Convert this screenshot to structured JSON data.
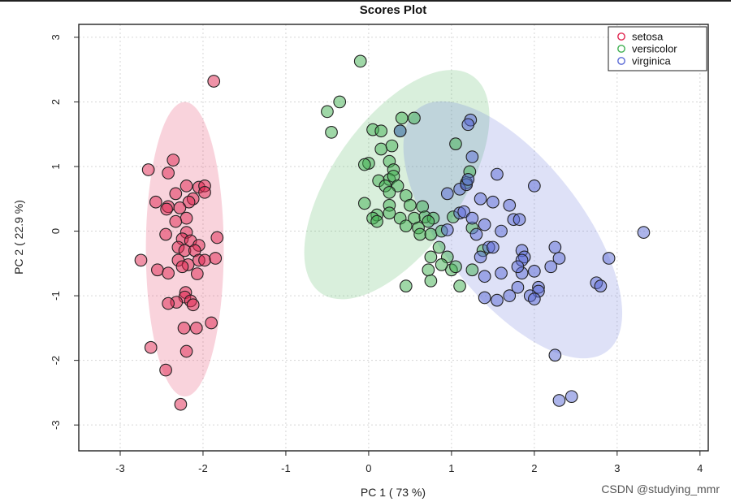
{
  "watermark": "CSDN @studying_mmr",
  "colors": {
    "setosa": "#e0254f",
    "versicolor": "#3fb050",
    "virginica": "#5a6ad6"
  },
  "chart_data": {
    "type": "scatter",
    "title": "Scores Plot",
    "xlabel": "PC 1 ( 73 %)",
    "ylabel": "PC 2 ( 22.9 %)",
    "xlim": [
      -3.5,
      4.1
    ],
    "ylim": [
      -3.4,
      3.2
    ],
    "xticks": [
      "-3",
      "-2",
      "-1",
      "0",
      "1",
      "2",
      "3",
      "4"
    ],
    "yticks": [
      "3",
      "2",
      "1",
      "0",
      "-1",
      "-2",
      "-3"
    ],
    "grid": true,
    "legend_position": "top-right",
    "series": [
      {
        "name": "setosa",
        "ellipse": {
          "cx": -2.22,
          "cy": -0.28,
          "rx": 0.47,
          "ry": 2.28,
          "angle": 0
        },
        "points": [
          [
            -1.87,
            2.32
          ],
          [
            -2.36,
            1.1
          ],
          [
            -2.66,
            0.95
          ],
          [
            -2.42,
            0.9
          ],
          [
            -2.57,
            0.45
          ],
          [
            -2.42,
            0.38
          ],
          [
            -2.33,
            0.58
          ],
          [
            -2.2,
            0.7
          ],
          [
            -2.05,
            0.68
          ],
          [
            -1.98,
            0.7
          ],
          [
            -1.98,
            0.6
          ],
          [
            -2.12,
            0.5
          ],
          [
            -2.17,
            0.45
          ],
          [
            -2.28,
            0.36
          ],
          [
            -2.44,
            0.34
          ],
          [
            -2.2,
            0.2
          ],
          [
            -2.33,
            0.15
          ],
          [
            -2.2,
            -0.02
          ],
          [
            -2.45,
            -0.05
          ],
          [
            -2.25,
            -0.12
          ],
          [
            -2.15,
            -0.15
          ],
          [
            -2.05,
            -0.22
          ],
          [
            -1.83,
            -0.1
          ],
          [
            -2.3,
            -0.25
          ],
          [
            -2.22,
            -0.3
          ],
          [
            -2.1,
            -0.3
          ],
          [
            -2.75,
            -0.45
          ],
          [
            -2.3,
            -0.45
          ],
          [
            -2.18,
            -0.52
          ],
          [
            -2.25,
            -0.55
          ],
          [
            -2.05,
            -0.45
          ],
          [
            -1.98,
            -0.45
          ],
          [
            -1.85,
            -0.42
          ],
          [
            -2.55,
            -0.6
          ],
          [
            -2.42,
            -0.65
          ],
          [
            -2.07,
            -0.66
          ],
          [
            -2.21,
            -0.95
          ],
          [
            -2.22,
            -1.02
          ],
          [
            -2.32,
            -1.1
          ],
          [
            -2.42,
            -1.12
          ],
          [
            -2.15,
            -1.08
          ],
          [
            -2.12,
            -1.14
          ],
          [
            -2.23,
            -1.5
          ],
          [
            -2.08,
            -1.5
          ],
          [
            -1.9,
            -1.42
          ],
          [
            -2.63,
            -1.8
          ],
          [
            -2.2,
            -1.86
          ],
          [
            -2.45,
            -2.15
          ],
          [
            -2.27,
            -2.68
          ]
        ]
      },
      {
        "name": "versicolor",
        "ellipse": {
          "cx": 0.34,
          "cy": 0.72,
          "rx": 0.78,
          "ry": 2.05,
          "angle": 35
        },
        "points": [
          [
            -0.1,
            2.63
          ],
          [
            -0.35,
            2.0
          ],
          [
            -0.5,
            1.85
          ],
          [
            -0.45,
            1.53
          ],
          [
            0.05,
            1.57
          ],
          [
            0.15,
            1.55
          ],
          [
            0.38,
            1.55
          ],
          [
            0.4,
            1.75
          ],
          [
            0.55,
            1.75
          ],
          [
            0.15,
            1.27
          ],
          [
            0.28,
            1.32
          ],
          [
            0.25,
            1.08
          ],
          [
            0.0,
            1.05
          ],
          [
            -0.05,
            1.03
          ],
          [
            0.3,
            0.95
          ],
          [
            0.12,
            0.78
          ],
          [
            0.25,
            0.8
          ],
          [
            0.3,
            0.85
          ],
          [
            0.2,
            0.7
          ],
          [
            0.35,
            0.7
          ],
          [
            0.25,
            0.6
          ],
          [
            0.45,
            0.55
          ],
          [
            1.05,
            1.35
          ],
          [
            1.22,
            0.92
          ],
          [
            1.18,
            0.75
          ],
          [
            -0.05,
            0.43
          ],
          [
            0.25,
            0.4
          ],
          [
            0.5,
            0.4
          ],
          [
            0.65,
            0.38
          ],
          [
            0.1,
            0.25
          ],
          [
            0.25,
            0.28
          ],
          [
            0.05,
            0.2
          ],
          [
            0.1,
            0.15
          ],
          [
            0.38,
            0.2
          ],
          [
            0.55,
            0.2
          ],
          [
            0.68,
            0.22
          ],
          [
            0.78,
            0.2
          ],
          [
            0.72,
            0.15
          ],
          [
            1.02,
            0.22
          ],
          [
            0.45,
            0.08
          ],
          [
            0.6,
            0.05
          ],
          [
            0.62,
            -0.05
          ],
          [
            0.75,
            -0.05
          ],
          [
            0.88,
            0.0
          ],
          [
            1.25,
            0.05
          ],
          [
            0.85,
            -0.25
          ],
          [
            0.75,
            -0.4
          ],
          [
            0.95,
            -0.4
          ],
          [
            1.0,
            -0.6
          ],
          [
            1.05,
            -0.55
          ],
          [
            0.88,
            -0.52
          ],
          [
            0.72,
            -0.6
          ],
          [
            0.45,
            -0.85
          ],
          [
            0.75,
            -0.77
          ],
          [
            1.1,
            -0.85
          ],
          [
            1.25,
            -0.6
          ],
          [
            1.38,
            -0.3
          ]
        ]
      },
      {
        "name": "virginica",
        "ellipse": {
          "cx": 1.74,
          "cy": 0.02,
          "rx": 0.84,
          "ry": 2.38,
          "angle": -38
        },
        "points": [
          [
            1.23,
            1.72
          ],
          [
            1.2,
            1.65
          ],
          [
            0.38,
            1.55
          ],
          [
            1.25,
            1.15
          ],
          [
            1.55,
            0.88
          ],
          [
            2.0,
            0.7
          ],
          [
            0.95,
            0.58
          ],
          [
            1.1,
            0.65
          ],
          [
            1.18,
            0.72
          ],
          [
            1.2,
            0.8
          ],
          [
            1.35,
            0.5
          ],
          [
            1.5,
            0.45
          ],
          [
            1.7,
            0.4
          ],
          [
            1.1,
            0.28
          ],
          [
            1.15,
            0.3
          ],
          [
            1.25,
            0.2
          ],
          [
            1.75,
            0.18
          ],
          [
            1.82,
            0.18
          ],
          [
            1.4,
            0.1
          ],
          [
            1.6,
            0.0
          ],
          [
            0.95,
            0.02
          ],
          [
            1.3,
            -0.05
          ],
          [
            1.45,
            -0.25
          ],
          [
            1.5,
            -0.25
          ],
          [
            1.85,
            -0.3
          ],
          [
            2.25,
            -0.25
          ],
          [
            1.88,
            -0.4
          ],
          [
            1.85,
            -0.45
          ],
          [
            2.3,
            -0.42
          ],
          [
            2.9,
            -0.42
          ],
          [
            3.32,
            -0.02
          ],
          [
            1.35,
            -0.4
          ],
          [
            1.6,
            -0.65
          ],
          [
            1.85,
            -0.65
          ],
          [
            2.0,
            -0.62
          ],
          [
            1.8,
            -0.55
          ],
          [
            2.2,
            -0.55
          ],
          [
            1.4,
            -0.7
          ],
          [
            1.8,
            -0.87
          ],
          [
            2.05,
            -0.87
          ],
          [
            2.05,
            -0.93
          ],
          [
            2.75,
            -0.8
          ],
          [
            2.8,
            -0.85
          ],
          [
            1.4,
            -1.03
          ],
          [
            1.55,
            -1.07
          ],
          [
            1.7,
            -1.0
          ],
          [
            1.95,
            -1.0
          ],
          [
            2.0,
            -1.05
          ],
          [
            2.25,
            -1.92
          ],
          [
            2.3,
            -2.62
          ],
          [
            2.45,
            -2.56
          ]
        ]
      }
    ]
  }
}
